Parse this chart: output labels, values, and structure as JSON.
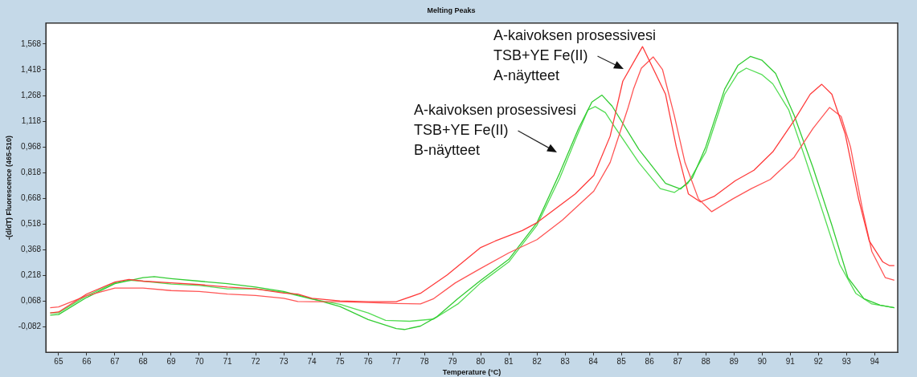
{
  "chart_data": {
    "type": "line",
    "title": "Melting Peaks",
    "xlabel": "Temperature (°C)",
    "ylabel": "-(d/dT) Fluorescence (465-510)",
    "xlim": [
      64.55,
      94.82
    ],
    "ylim": [
      -0.23,
      1.69
    ],
    "xticks": [
      65,
      66,
      67,
      68,
      69,
      70,
      71,
      72,
      73,
      74,
      75,
      76,
      77,
      78,
      79,
      80,
      81,
      82,
      83,
      84,
      85,
      86,
      87,
      88,
      89,
      90,
      91,
      92,
      93,
      94
    ],
    "yticks": [
      {
        "value": -0.082,
        "label": "-0,082"
      },
      {
        "value": 0.068,
        "label": "0,068"
      },
      {
        "value": 0.218,
        "label": "0,218"
      },
      {
        "value": 0.368,
        "label": "0,368"
      },
      {
        "value": 0.518,
        "label": "0,518"
      },
      {
        "value": 0.668,
        "label": "0,668"
      },
      {
        "value": 0.818,
        "label": "0,818"
      },
      {
        "value": 0.968,
        "label": "0,968"
      },
      {
        "value": 1.118,
        "label": "1,118"
      },
      {
        "value": 1.268,
        "label": "1,268"
      },
      {
        "value": 1.418,
        "label": "1,418"
      },
      {
        "value": 1.568,
        "label": "1,568"
      }
    ],
    "grid": false,
    "legend": false,
    "marker": "none",
    "line_style": "solid",
    "annotations": [
      "A-kaivoksen prosessivesi\nTSB+YE Fe(II)\nA-näytteet",
      "A-kaivoksen prosessivesi\nTSB+YE Fe(II)\nB-näytteet"
    ],
    "series": [
      {
        "color": "#ff3b3b",
        "x": [
          64.7,
          65,
          66,
          67,
          67.5,
          68,
          69,
          70,
          71,
          72,
          73,
          73.5,
          74,
          75,
          76,
          77,
          77.86,
          78.81,
          80,
          80.52,
          81.48,
          82,
          83.36,
          84.02,
          84.6,
          85.05,
          85.75,
          86.57,
          86.95,
          87.38,
          87.81,
          88.29,
          89.05,
          89.71,
          90.38,
          91.14,
          91.71,
          92.12,
          92.48,
          92.95,
          93.43,
          93.81,
          94.29,
          94.52,
          94.7
        ],
        "values": [
          0,
          0.005,
          0.11,
          0.18,
          0.195,
          0.185,
          0.175,
          0.165,
          0.15,
          0.14,
          0.115,
          0.11,
          0.085,
          0.07,
          0.065,
          0.065,
          0.114,
          0.221,
          0.381,
          0.419,
          0.48,
          0.526,
          0.694,
          0.801,
          1.03,
          1.351,
          1.553,
          1.275,
          0.969,
          0.694,
          0.647,
          0.679,
          0.771,
          0.832,
          0.939,
          1.122,
          1.275,
          1.333,
          1.275,
          1.046,
          0.664,
          0.419,
          0.297,
          0.276,
          0.276
        ]
      },
      {
        "color": "#ff5555",
        "x": [
          64.7,
          65,
          66,
          67,
          68,
          69,
          70,
          71,
          72,
          73,
          73.5,
          74,
          75,
          76,
          77,
          77.86,
          78.33,
          79.1,
          80,
          81,
          82,
          82.9,
          84.02,
          84.6,
          85.24,
          85.43,
          85.71,
          86.13,
          86.46,
          86.88,
          87.26,
          87.74,
          88.21,
          88.95,
          89.62,
          90.29,
          91.14,
          91.81,
          92.4,
          92.81,
          93.14,
          93.57,
          93.9,
          94.38,
          94.7
        ],
        "values": [
          0.03,
          0.035,
          0.1,
          0.145,
          0.145,
          0.13,
          0.125,
          0.11,
          0.101,
          0.085,
          0.066,
          0.065,
          0.065,
          0.06,
          0.055,
          0.052,
          0.083,
          0.175,
          0.259,
          0.35,
          0.427,
          0.541,
          0.71,
          0.877,
          1.198,
          1.305,
          1.427,
          1.493,
          1.42,
          1.152,
          0.877,
          0.664,
          0.59,
          0.664,
          0.725,
          0.778,
          0.908,
          1.076,
          1.198,
          1.145,
          0.969,
          0.602,
          0.358,
          0.205,
          0.19
        ]
      },
      {
        "color": "#33cc33",
        "x": [
          64.7,
          65,
          66,
          67,
          68,
          68.4,
          69,
          70,
          71,
          72,
          73,
          74,
          75,
          76,
          77,
          77.29,
          77.86,
          78.43,
          79.19,
          80,
          81,
          82,
          82.81,
          83.48,
          83.95,
          84.31,
          84.67,
          85.62,
          86.57,
          87.1,
          87.52,
          88,
          88.67,
          89.14,
          89.59,
          90,
          90.48,
          91.14,
          91.81,
          92.48,
          93.05,
          93.62,
          94.19,
          94.7
        ],
        "values": [
          -0.013,
          -0.01,
          0.09,
          0.17,
          0.205,
          0.211,
          0.2,
          0.185,
          0.17,
          0.15,
          0.125,
          0.083,
          0.037,
          -0.039,
          -0.092,
          -0.097,
          -0.077,
          -0.024,
          0.083,
          0.19,
          0.312,
          0.526,
          0.816,
          1.076,
          1.229,
          1.27,
          1.206,
          0.954,
          0.755,
          0.722,
          0.786,
          0.969,
          1.305,
          1.443,
          1.496,
          1.473,
          1.397,
          1.152,
          0.847,
          0.511,
          0.205,
          0.083,
          0.045,
          0.03
        ]
      },
      {
        "color": "#55dd55",
        "x": [
          64.7,
          65,
          66,
          67,
          67.5,
          68,
          69,
          70,
          71,
          72,
          73,
          74,
          75,
          76,
          76.62,
          77.48,
          78.33,
          79.19,
          80,
          81,
          82,
          82.81,
          83.38,
          83.81,
          84.07,
          84.43,
          84.67,
          85.62,
          86.38,
          86.88,
          87.36,
          88,
          88.67,
          89.14,
          89.44,
          90,
          90.38,
          90.95,
          91.52,
          92.19,
          92.76,
          93.33,
          93.9,
          94.7
        ],
        "values": [
          0,
          0,
          0.1,
          0.175,
          0.19,
          0.185,
          0.168,
          0.16,
          0.14,
          0.14,
          0.12,
          0.08,
          0.05,
          0,
          -0.044,
          -0.049,
          -0.036,
          0.052,
          0.175,
          0.297,
          0.511,
          0.786,
          1.015,
          1.183,
          1.203,
          1.168,
          1.107,
          0.877,
          0.725,
          0.702,
          0.755,
          0.939,
          1.275,
          1.397,
          1.427,
          1.389,
          1.336,
          1.183,
          0.908,
          0.572,
          0.282,
          0.114,
          0.052,
          0.03
        ]
      }
    ]
  }
}
